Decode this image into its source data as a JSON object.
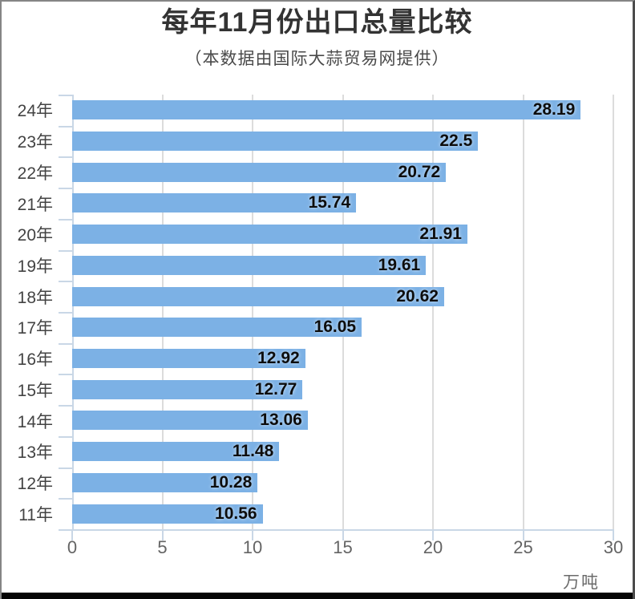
{
  "header": {
    "title": "每年11月份出口总量比较",
    "subtitle": "（本数据由国际大蒜贸易网提供）"
  },
  "chart_data": {
    "type": "bar",
    "orientation": "horizontal",
    "title": "每年11月份出口总量比较",
    "subtitle": "（本数据由国际大蒜贸易网提供）",
    "categories": [
      "24年",
      "23年",
      "22年",
      "21年",
      "20年",
      "19年",
      "18年",
      "17年",
      "16年",
      "15年",
      "14年",
      "13年",
      "12年",
      "11年"
    ],
    "values": [
      28.19,
      22.5,
      20.72,
      15.74,
      21.91,
      19.61,
      20.62,
      16.05,
      12.92,
      12.77,
      13.06,
      11.48,
      10.28,
      10.56
    ],
    "value_labels": [
      "28.19",
      "22.5",
      "20.72",
      "15.74",
      "21.91",
      "19.61",
      "20.62",
      "16.05",
      "12.92",
      "12.77",
      "13.06",
      "11.48",
      "10.28",
      "10.56"
    ],
    "xlim": [
      0,
      30
    ],
    "x_ticks": [
      0,
      5,
      10,
      15,
      20,
      25,
      30
    ],
    "x_tick_labels": [
      "0",
      "5",
      "10",
      "15",
      "20",
      "25",
      "30"
    ],
    "unit_label": "万吨",
    "grid": true,
    "legend": "none",
    "colors": {
      "bar": "#7cb1e5",
      "grid": "#dcdcdc",
      "axis": "#c9d7e6",
      "value_text": "#0d0d0d",
      "category_text": "#434343",
      "tick_text": "#646464",
      "title_text": "#333333",
      "subtitle_text": "#4a4a4a"
    }
  }
}
